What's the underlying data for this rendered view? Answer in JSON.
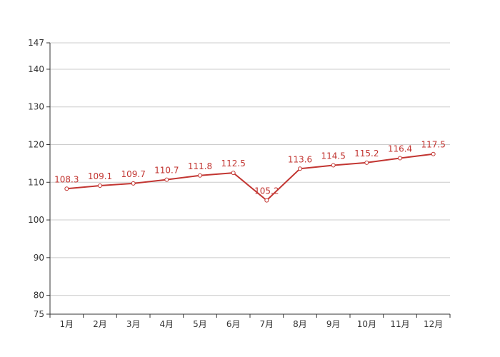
{
  "chart_data": {
    "type": "line",
    "categories": [
      "1月",
      "2月",
      "3月",
      "4月",
      "5月",
      "6月",
      "7月",
      "8月",
      "9月",
      "10月",
      "11月",
      "12月"
    ],
    "series": [
      {
        "values": [
          108.3,
          109.1,
          109.7,
          110.7,
          111.8,
          112.5,
          105.2,
          113.6,
          114.5,
          115.2,
          116.4,
          117.5
        ]
      }
    ],
    "data_labels": [
      "108.3",
      "109.1",
      "109.7",
      "110.7",
      "111.8",
      "112.5",
      "105.2",
      "113.6",
      "114.5",
      "115.2",
      "116.4",
      "117.5"
    ],
    "yticks": [
      75,
      80,
      90,
      100,
      110,
      120,
      130,
      140,
      147
    ],
    "ytick_labels": [
      "75",
      "80",
      "90",
      "100",
      "110",
      "120",
      "130",
      "140",
      "147"
    ],
    "ylim": [
      75,
      147
    ],
    "grid": true,
    "colors": {
      "series": "#c23531",
      "grid": "#cccccc",
      "axis": "#333333"
    }
  }
}
